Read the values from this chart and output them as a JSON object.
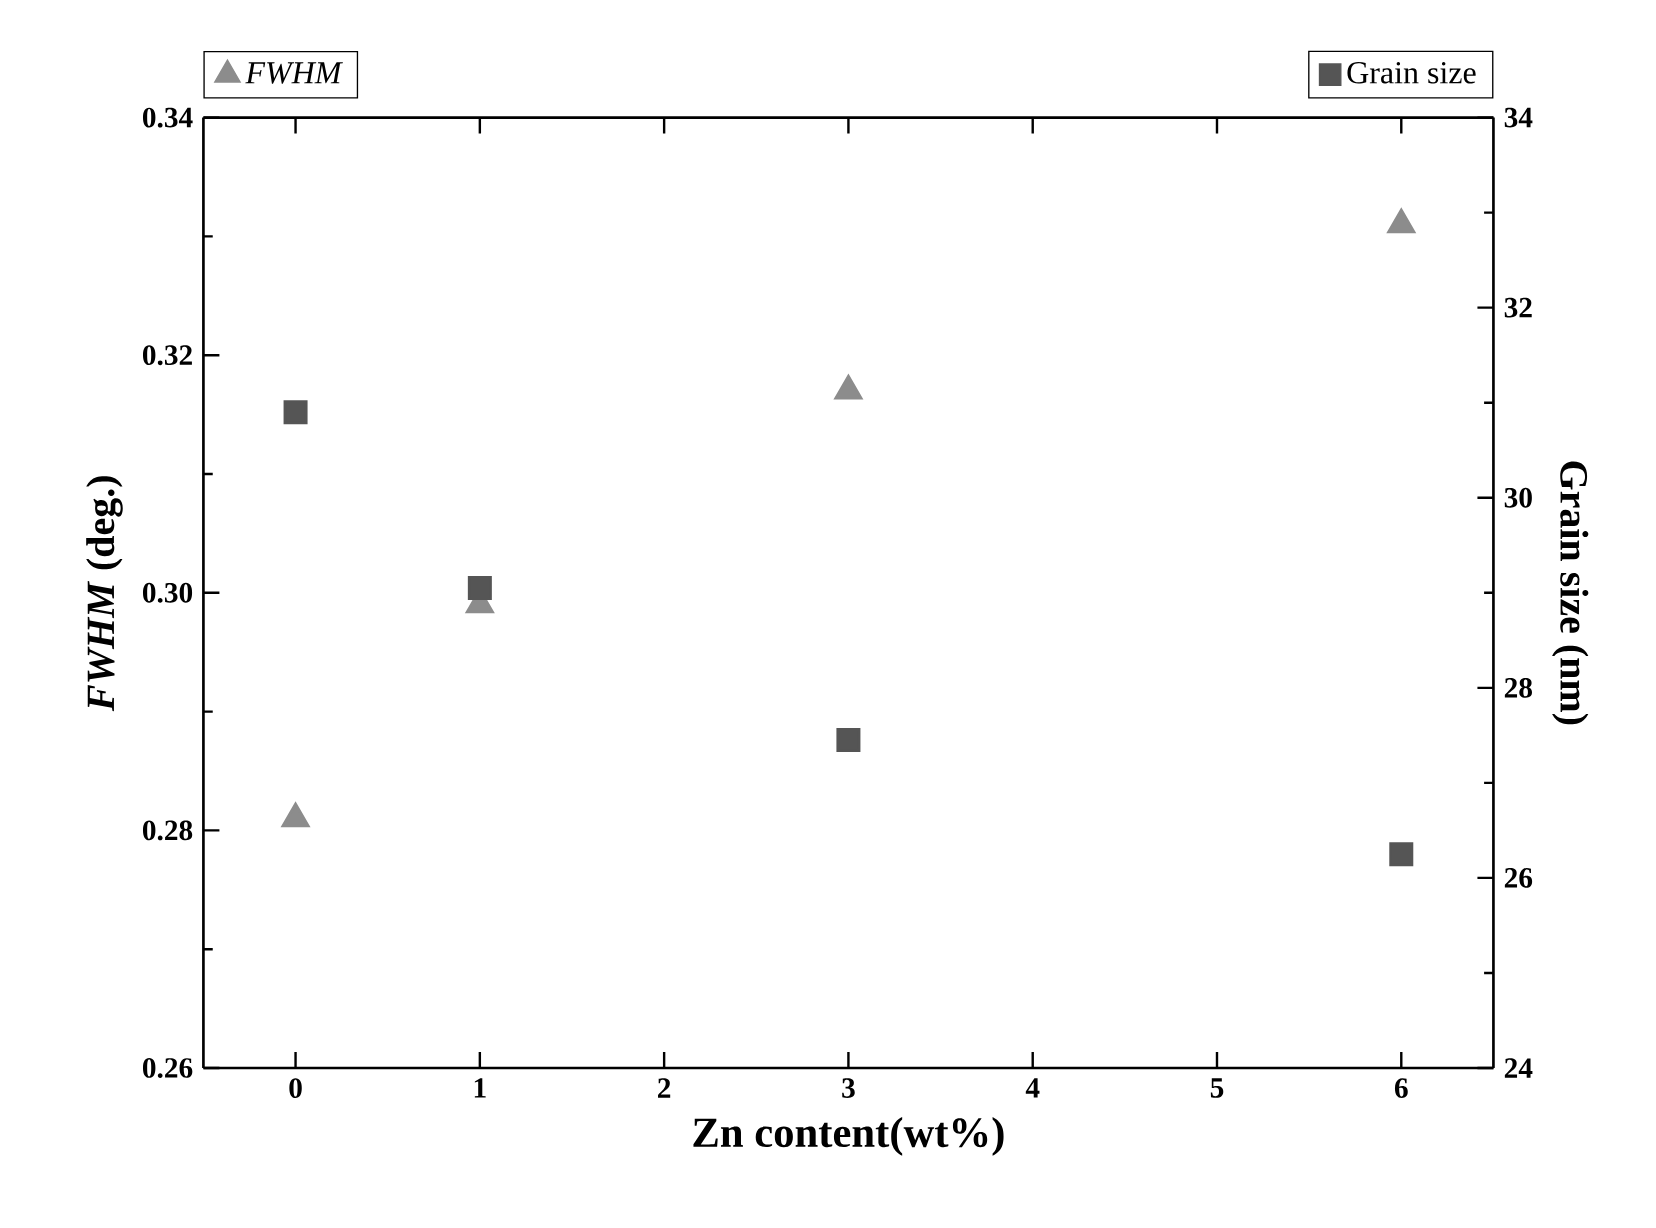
{
  "chart_data": {
    "type": "scatter",
    "xlabel": "Zn content(wt%)",
    "ylabel": "*FWHM* (deg.)",
    "y2label": "Grain size (nm)",
    "x": [
      0,
      1,
      3,
      6
    ],
    "series": [
      {
        "name": "FWHM",
        "color": "#8c8c8c",
        "marker": "triangle",
        "values": [
          0.281,
          0.299,
          0.317,
          0.331
        ]
      },
      {
        "name": "Grain size",
        "color": "#555555",
        "marker": "square",
        "axis": "y2",
        "values": [
          30.9,
          29.05,
          27.45,
          26.25
        ]
      }
    ],
    "xlim": [
      -0.5,
      6.5
    ],
    "xticks": [
      0,
      1,
      2,
      3,
      4,
      5,
      6
    ],
    "ylim": [
      0.26,
      0.34
    ],
    "yticks": [
      {
        "value": 0.26,
        "label": "0.26"
      },
      {
        "value": 0.28,
        "label": "0.28"
      },
      {
        "value": 0.3,
        "label": "0.30"
      },
      {
        "value": 0.32,
        "label": "0.32"
      },
      {
        "value": 0.34,
        "label": "0.34"
      }
    ],
    "y2lim": [
      24,
      34
    ],
    "y2ticks": [
      24,
      26,
      28,
      30,
      32,
      34
    ],
    "grid": false,
    "legend": "top"
  }
}
